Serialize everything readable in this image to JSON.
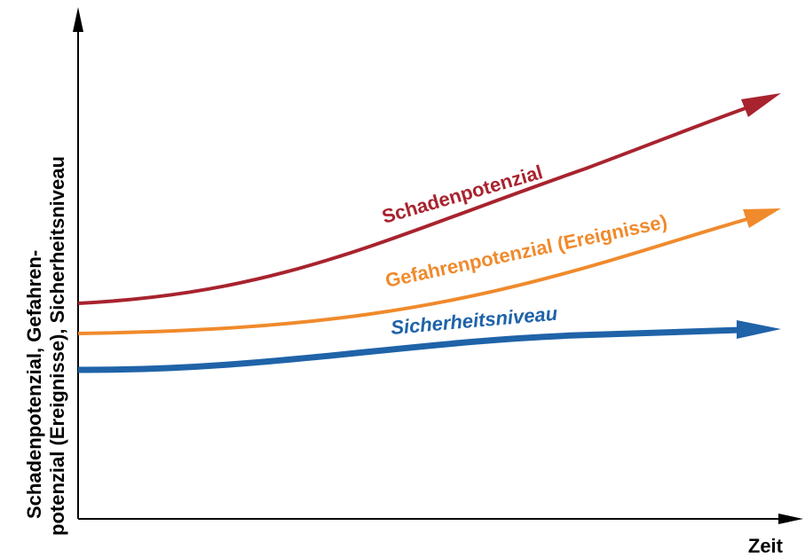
{
  "axes": {
    "x_label": "Zeit",
    "y_label_line1": "Schadenpotenzial, Gefahren-",
    "y_label_line2": "potenzial (Ereignisse), Sicherheitsniveau"
  },
  "curves": {
    "schaden": {
      "label": "Schadenpotenzial",
      "color": "#a8232e"
    },
    "gefahren": {
      "label": "Gefahrenpotenzial (Ereignisse)",
      "color": "#f08a2c"
    },
    "sicherheit": {
      "label": "Sicherheitsniveau",
      "color": "#1f63a8"
    }
  },
  "colors": {
    "axis": "#000000",
    "background": "#ffffff"
  }
}
